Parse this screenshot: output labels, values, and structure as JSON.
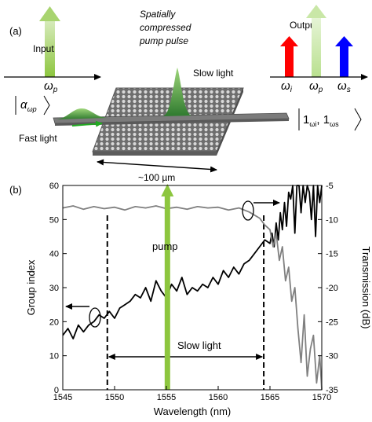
{
  "panel_a": {
    "label": "(a)",
    "input_label": "Input",
    "pump_caption": [
      "Spatially",
      "compressed",
      "pump pulse"
    ],
    "slow_light_label": "Slow light",
    "fast_light_label": "Fast light",
    "output_label": "Output",
    "size_label": "~100 µm",
    "omega_p_input": {
      "symbol": "ω",
      "sub": "p"
    },
    "omega_i": {
      "symbol": "ω",
      "sub": "i"
    },
    "omega_p_output": {
      "symbol": "ω",
      "sub": "p"
    },
    "omega_s": {
      "symbol": "ω",
      "sub": "s"
    },
    "input_state": {
      "symbol": "α",
      "sub": "ωp"
    },
    "output_state": {
      "text": "1",
      "sub1": "ωi",
      "sub2": "ωs"
    },
    "colors": {
      "pump": "#8dc63f",
      "idler": "#ff0000",
      "signal": "#0000ff",
      "slab": "#808080"
    }
  },
  "panel_b": {
    "label": "(b)",
    "pump_label": "pump",
    "slow_light_label": "Slow light"
  },
  "chart_data": {
    "type": "line",
    "xlabel": "Wavelength (nm)",
    "ylabel": "Group index",
    "y2label": "Transmission (dB)",
    "xlim": [
      1545,
      1570
    ],
    "ylim": [
      0,
      60
    ],
    "y2lim": [
      -35,
      -5
    ],
    "xticks": [
      1545,
      1550,
      1555,
      1560,
      1565,
      1570
    ],
    "yticks": [
      0,
      10,
      20,
      30,
      40,
      50,
      60
    ],
    "y2ticks": [
      -5,
      -10,
      -15,
      -20,
      -25,
      -30,
      -35
    ],
    "markers": {
      "slow_light_start": 1549.3,
      "slow_light_end": 1564.4,
      "pump": 1555.1
    },
    "series": [
      {
        "axis": "left",
        "color": "#000000",
        "x": [
          1545,
          1545.5,
          1546,
          1546.5,
          1547,
          1547.5,
          1548,
          1548.5,
          1549,
          1549.5,
          1550,
          1550.5,
          1551,
          1551.5,
          1552,
          1552.5,
          1553,
          1553.5,
          1554,
          1554.5,
          1555,
          1555.5,
          1556,
          1556.5,
          1557,
          1557.5,
          1558,
          1558.5,
          1559,
          1559.5,
          1560,
          1560.5,
          1561,
          1561.5,
          1562,
          1562.5,
          1563,
          1563.5,
          1564,
          1564.5,
          1565,
          1565.2,
          1565.4,
          1565.6,
          1565.8,
          1566,
          1566.2,
          1566.4,
          1566.6,
          1566.8,
          1567,
          1567.2,
          1567.4,
          1567.6,
          1567.8,
          1568,
          1568.2,
          1568.4,
          1568.6,
          1568.8,
          1569,
          1569.2,
          1569.4,
          1569.6,
          1569.8,
          1570
        ],
        "y": [
          16,
          18,
          15,
          19,
          17,
          19,
          20,
          22,
          21,
          23,
          21,
          24,
          25,
          26,
          28,
          27,
          30,
          26,
          32,
          29,
          27,
          31,
          29,
          33,
          28,
          30,
          29,
          31,
          30,
          33,
          31,
          35,
          33,
          36,
          34,
          37,
          38,
          40,
          42,
          44,
          43,
          46,
          42,
          49,
          44,
          52,
          47,
          55,
          48,
          58,
          56,
          60,
          46,
          60,
          60,
          52,
          60,
          55,
          60,
          58,
          50,
          60,
          45,
          60,
          55,
          60
        ]
      },
      {
        "axis": "right",
        "color": "#808080",
        "x": [
          1545,
          1546,
          1547,
          1548,
          1549,
          1550,
          1551,
          1552,
          1553,
          1554,
          1555,
          1556,
          1557,
          1558,
          1559,
          1560,
          1561,
          1562,
          1563,
          1564,
          1564.5,
          1565,
          1565.3,
          1565.6,
          1565.9,
          1566.2,
          1566.5,
          1566.8,
          1567.1,
          1567.4,
          1567.7,
          1568,
          1568.3,
          1568.6,
          1568.9,
          1569.2,
          1569.5,
          1569.8,
          1570
        ],
        "y": [
          -8.3,
          -8.0,
          -8.5,
          -8.1,
          -8.4,
          -8.2,
          -8.6,
          -8.1,
          -8.3,
          -8.0,
          -8.4,
          -8.2,
          -8.5,
          -8.1,
          -8.3,
          -8.2,
          -8.6,
          -8.3,
          -8.9,
          -9.8,
          -10.8,
          -11.5,
          -14,
          -12,
          -16,
          -14,
          -19,
          -17,
          -22,
          -20,
          -26,
          -31,
          -24,
          -33,
          -29,
          -27,
          -34,
          -30,
          -35
        ]
      }
    ]
  }
}
